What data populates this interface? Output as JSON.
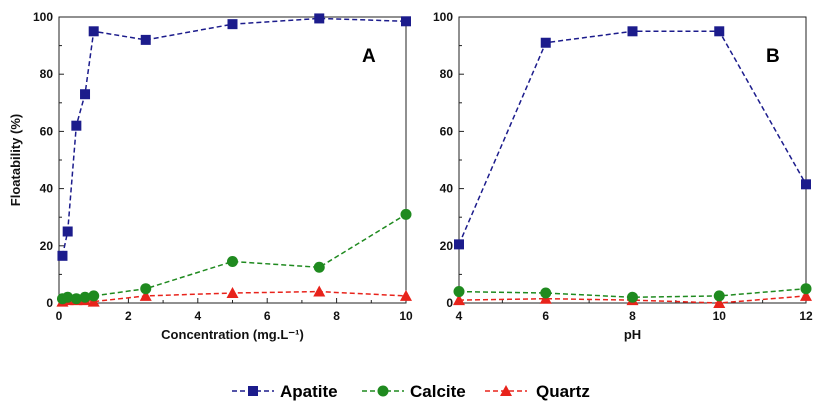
{
  "legend": {
    "items": [
      {
        "label": "Apatite",
        "color": "#1c1c8c",
        "marker": "square"
      },
      {
        "label": "Calcite",
        "color": "#1f8a1f",
        "marker": "circle"
      },
      {
        "label": "Quartz",
        "color": "#e8231b",
        "marker": "triangle"
      }
    ]
  },
  "chart_data": [
    {
      "type": "line",
      "panel_label": "A",
      "xlabel": "Concentration (mg.L⁻¹)",
      "ylabel": "Floatability (%)",
      "xlim": [
        0,
        10
      ],
      "ylim": [
        0,
        100
      ],
      "xticks": [
        0,
        2,
        4,
        6,
        8,
        10
      ],
      "yticks": [
        0,
        20,
        40,
        60,
        80,
        100
      ],
      "grid": false,
      "series": [
        {
          "name": "Apatite",
          "x": [
            0.1,
            0.25,
            0.5,
            0.75,
            1,
            2.5,
            5,
            7.5,
            10
          ],
          "y": [
            16.5,
            25,
            62,
            73,
            95,
            92,
            97.5,
            99.5,
            98.5
          ]
        },
        {
          "name": "Calcite",
          "x": [
            0.1,
            0.25,
            0.5,
            0.75,
            1,
            2.5,
            5,
            7.5,
            10
          ],
          "y": [
            1.5,
            2,
            1.5,
            2,
            2.5,
            5,
            14.5,
            12.5,
            31
          ]
        },
        {
          "name": "Quartz",
          "x": [
            0.1,
            0.25,
            0.5,
            0.75,
            1,
            2.5,
            5,
            7.5,
            10
          ],
          "y": [
            0.5,
            1,
            1,
            1,
            0.5,
            2.5,
            3.5,
            4,
            2.5
          ]
        }
      ]
    },
    {
      "type": "line",
      "panel_label": "B",
      "xlabel": "pH",
      "ylabel": "",
      "xlim": [
        4,
        12
      ],
      "ylim": [
        0,
        100
      ],
      "xticks": [
        4,
        6,
        8,
        10,
        12
      ],
      "yticks": [
        0,
        20,
        40,
        60,
        80,
        100
      ],
      "grid": false,
      "series": [
        {
          "name": "Apatite",
          "x": [
            4,
            6,
            8,
            10,
            12
          ],
          "y": [
            20.5,
            91,
            95,
            95,
            41.5
          ]
        },
        {
          "name": "Calcite",
          "x": [
            4,
            6,
            8,
            10,
            12
          ],
          "y": [
            4,
            3.5,
            2,
            2.5,
            5
          ]
        },
        {
          "name": "Quartz",
          "x": [
            4,
            6,
            8,
            10,
            12
          ],
          "y": [
            1,
            1.5,
            1,
            0,
            2.5
          ]
        }
      ]
    }
  ]
}
